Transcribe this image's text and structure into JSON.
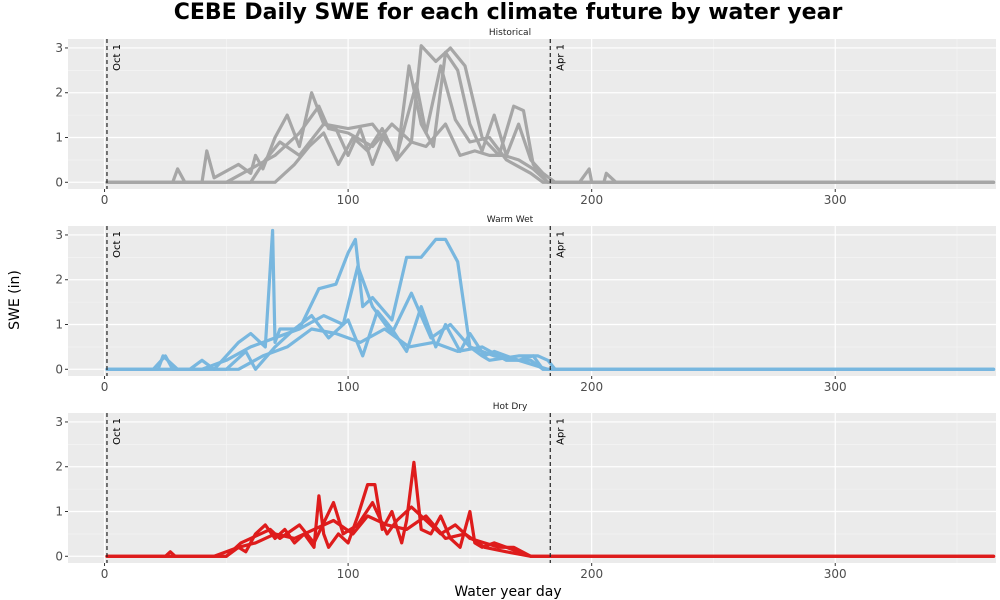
{
  "chart_data": {
    "type": "line",
    "title": "CEBE Daily SWE for each climate future by water year",
    "xlabel": "Water year day",
    "ylabel": "SWE (in)",
    "xlim": [
      -15,
      366
    ],
    "ylim": [
      -0.15,
      3.2
    ],
    "x_ticks": [
      0,
      100,
      200,
      300
    ],
    "y_ticks": [
      0,
      1,
      2,
      3
    ],
    "grid": true,
    "reference_lines": [
      {
        "x": 1,
        "label": "Oct 1"
      },
      {
        "x": 183,
        "label": "Apr 1"
      }
    ],
    "panels": [
      {
        "name": "Historical",
        "color": "#a6a6a6",
        "series": [
          {
            "x": [
              1,
              40,
              42,
              45,
              55,
              60,
              62,
              65,
              70,
              75,
              80,
              85,
              90,
              95,
              100,
              105,
              110,
              115,
              120,
              125,
              130,
              135,
              140,
              145,
              150,
              155,
              160,
              165,
              170,
              175,
              180,
              185,
              195,
              199,
              200,
              205,
              206,
              210,
              365
            ],
            "y": [
              0,
              0,
              0.7,
              0.1,
              0.4,
              0.2,
              0.6,
              0.3,
              1.0,
              1.5,
              0.8,
              2.0,
              1.3,
              1.2,
              0.6,
              1.2,
              0.4,
              1.1,
              0.5,
              2.6,
              1.3,
              0.8,
              2.9,
              2.5,
              1.3,
              0.7,
              1.5,
              0.6,
              1.3,
              0.5,
              0.2,
              0,
              0,
              0.3,
              0,
              0,
              0.2,
              0,
              0
            ]
          },
          {
            "x": [
              1,
              50,
              60,
              70,
              80,
              88,
              92,
              100,
              110,
              118,
              126,
              130,
              136,
              142,
              148,
              155,
              162,
              168,
              172,
              176,
              182,
              365
            ],
            "y": [
              0,
              0,
              0.3,
              0.6,
              1.1,
              1.7,
              1.2,
              1.1,
              0.8,
              1.3,
              0.9,
              3.05,
              2.7,
              3.0,
              2.6,
              1.0,
              0.6,
              1.7,
              1.6,
              0.4,
              0,
              0
            ]
          },
          {
            "x": [
              1,
              28,
              30,
              33,
              60,
              66,
              72,
              80,
              90,
              100,
              110,
              120,
              128,
              132,
              138,
              144,
              150,
              158,
              165,
              175,
              180,
              365
            ],
            "y": [
              0,
              0,
              0.3,
              0,
              0,
              0.5,
              0.9,
              0.6,
              1.3,
              1.2,
              1.3,
              0.6,
              2.2,
              1.1,
              2.6,
              1.4,
              0.9,
              1.0,
              0.5,
              0.2,
              0,
              0
            ]
          },
          {
            "x": [
              1,
              70,
              78,
              84,
              90,
              96,
              102,
              108,
              114,
              120,
              126,
              132,
              140,
              146,
              152,
              158,
              164,
              170,
              176,
              182,
              365
            ],
            "y": [
              0,
              0,
              0.4,
              0.8,
              1.1,
              0.4,
              1.0,
              0.7,
              1.2,
              0.5,
              0.9,
              0.8,
              1.3,
              0.6,
              0.7,
              0.6,
              0.6,
              0.5,
              0.3,
              0,
              0
            ]
          }
        ]
      },
      {
        "name": "Warm Wet",
        "color": "#78b7df",
        "series": [
          {
            "x": [
              1,
              20,
              25,
              28,
              35,
              40,
              45,
              50,
              55,
              60,
              66,
              69,
              70,
              72,
              80,
              88,
              95,
              100,
              103,
              106,
              110,
              118,
              124,
              130,
              136,
              140,
              145,
              150,
              155,
              158,
              170,
              178,
              182,
              185,
              365
            ],
            "y": [
              0,
              0,
              0.3,
              0,
              0,
              0.2,
              0,
              0.3,
              0.6,
              0.8,
              0.5,
              3.1,
              0.6,
              0.9,
              0.9,
              1.8,
              1.9,
              2.6,
              2.9,
              1.4,
              1.6,
              1.1,
              2.5,
              2.5,
              2.9,
              2.9,
              2.4,
              0.5,
              0.3,
              0.2,
              0.3,
              0.3,
              0.2,
              0,
              0
            ]
          },
          {
            "x": [
              1,
              15,
              22,
              24,
              30,
              50,
              58,
              62,
              70,
              78,
              85,
              92,
              100,
              106,
              112,
              118,
              124,
              130,
              136,
              140,
              146,
              150,
              156,
              160,
              170,
              176,
              180,
              365
            ],
            "y": [
              0,
              0,
              0,
              0.3,
              0,
              0,
              0.4,
              0,
              0.5,
              0.9,
              1.2,
              0.7,
              1.1,
              0.3,
              1.3,
              0.9,
              0.4,
              1.4,
              0.5,
              1.0,
              0.4,
              0.8,
              0.3,
              0.4,
              0.2,
              0.3,
              0,
              0
            ]
          },
          {
            "x": [
              1,
              40,
              50,
              60,
              70,
              80,
              90,
              98,
              104,
              110,
              118,
              126,
              134,
              142,
              150,
              160,
              170,
              182,
              365
            ],
            "y": [
              0,
              0,
              0.2,
              0.5,
              0.7,
              0.9,
              1.2,
              1.0,
              2.3,
              1.4,
              0.8,
              1.7,
              0.7,
              1.0,
              0.5,
              0.3,
              0.2,
              0,
              0
            ]
          },
          {
            "x": [
              1,
              55,
              65,
              75,
              85,
              95,
              105,
              115,
              125,
              135,
              145,
              155,
              165,
              175,
              180,
              365
            ],
            "y": [
              0,
              0,
              0.3,
              0.5,
              0.9,
              0.8,
              0.6,
              0.9,
              0.5,
              0.6,
              0.4,
              0.5,
              0.2,
              0.2,
              0,
              0
            ]
          }
        ]
      },
      {
        "name": "Hot Dry",
        "color": "#de1c1c",
        "series": [
          {
            "x": [
              1,
              25,
              27,
              29,
              40,
              50,
              55,
              58,
              62,
              66,
              70,
              74,
              78,
              82,
              86,
              88,
              90,
              92,
              96,
              100,
              104,
              108,
              111,
              114,
              118,
              122,
              124,
              127,
              130,
              134,
              138,
              142,
              146,
              150,
              152,
              155,
              160,
              165,
              170,
              175,
              365
            ],
            "y": [
              0,
              0,
              0.1,
              0,
              0,
              0,
              0.2,
              0.1,
              0.5,
              0.7,
              0.4,
              0.6,
              0.3,
              0.5,
              0.2,
              1.35,
              0.5,
              0.2,
              0.5,
              0.3,
              0.9,
              1.6,
              1.6,
              0.6,
              1.0,
              0.3,
              0.8,
              2.1,
              0.6,
              0.5,
              0.9,
              0.4,
              0.2,
              1.0,
              0.3,
              0.2,
              0.3,
              0.2,
              0.1,
              0,
              0
            ]
          },
          {
            "x": [
              1,
              50,
              56,
              60,
              68,
              72,
              80,
              86,
              94,
              98,
              104,
              110,
              116,
              120,
              126,
              132,
              138,
              144,
              150,
              156,
              162,
              168,
              175,
              365
            ],
            "y": [
              0,
              0,
              0.3,
              0.4,
              0.6,
              0.4,
              0.7,
              0.3,
              1.2,
              0.5,
              0.7,
              1.2,
              0.5,
              0.8,
              1.1,
              0.8,
              0.5,
              0.7,
              0.4,
              0.3,
              0.2,
              0.2,
              0,
              0
            ]
          },
          {
            "x": [
              1,
              45,
              55,
              62,
              70,
              78,
              86,
              94,
              102,
              108,
              116,
              124,
              132,
              140,
              148,
              156,
              165,
              175,
              365
            ],
            "y": [
              0,
              0,
              0.2,
              0.3,
              0.5,
              0.4,
              0.6,
              0.8,
              0.5,
              0.9,
              0.7,
              0.6,
              0.9,
              0.4,
              0.5,
              0.2,
              0.1,
              0,
              0
            ]
          }
        ]
      }
    ]
  }
}
